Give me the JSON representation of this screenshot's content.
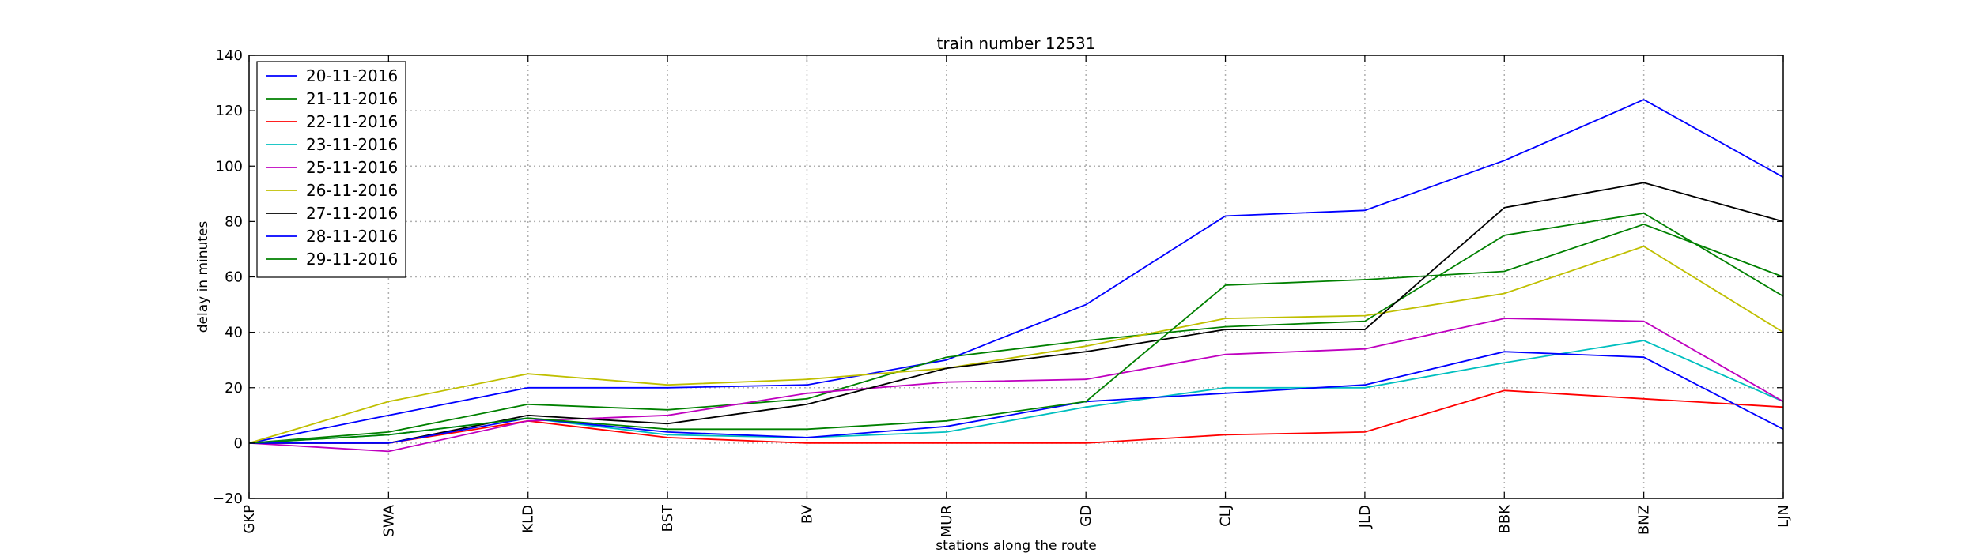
{
  "chart_data": {
    "type": "line",
    "title": "train number 12531",
    "xlabel": "stations along the route",
    "ylabel": "delay in minutes",
    "categories": [
      "GKP",
      "SWA",
      "KLD",
      "BST",
      "BV",
      "MUR",
      "GD",
      "CLJ",
      "JLD",
      "BBK",
      "BNZ",
      "LJN"
    ],
    "ylim": [
      -20,
      140
    ],
    "yticks": [
      -20,
      0,
      20,
      40,
      60,
      80,
      100,
      120,
      140
    ],
    "grid": true,
    "legend_position": "top-left",
    "series": [
      {
        "name": "20-11-2016",
        "color": "#0000ff",
        "values": [
          0,
          10,
          20,
          20,
          21,
          30,
          50,
          82,
          84,
          102,
          124,
          96
        ]
      },
      {
        "name": "21-11-2016",
        "color": "#008000",
        "values": [
          0,
          4,
          14,
          12,
          16,
          31,
          37,
          42,
          44,
          75,
          83,
          53
        ]
      },
      {
        "name": "22-11-2016",
        "color": "#ff0000",
        "values": [
          0,
          0,
          8,
          2,
          0,
          0,
          0,
          3,
          4,
          19,
          16,
          13
        ]
      },
      {
        "name": "23-11-2016",
        "color": "#00bfbf",
        "values": [
          0,
          3,
          9,
          3,
          2,
          4,
          13,
          20,
          20,
          29,
          37,
          15
        ]
      },
      {
        "name": "25-11-2016",
        "color": "#bf00bf",
        "values": [
          0,
          -3,
          8,
          10,
          18,
          22,
          23,
          32,
          34,
          45,
          44,
          15
        ]
      },
      {
        "name": "26-11-2016",
        "color": "#bfbf00",
        "values": [
          0,
          15,
          25,
          21,
          23,
          27,
          35,
          45,
          46,
          54,
          71,
          40
        ]
      },
      {
        "name": "27-11-2016",
        "color": "#000000",
        "values": [
          0,
          0,
          10,
          7,
          14,
          27,
          33,
          41,
          41,
          85,
          94,
          80
        ]
      },
      {
        "name": "28-11-2016",
        "color": "#0000ff",
        "values": [
          0,
          0,
          9,
          4,
          2,
          6,
          15,
          18,
          21,
          33,
          31,
          5
        ]
      },
      {
        "name": "29-11-2016",
        "color": "#008000",
        "values": [
          0,
          3,
          9,
          5,
          5,
          8,
          15,
          57,
          59,
          62,
          79,
          60
        ]
      }
    ]
  }
}
